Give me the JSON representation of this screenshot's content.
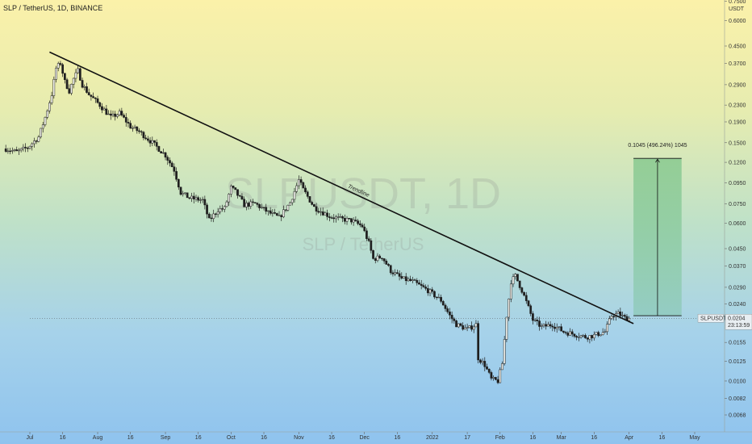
{
  "header": {
    "title": "SLP / TetherUS, 1D, BINANCE"
  },
  "watermark": {
    "symbol": "SLPUSDT, 1D",
    "name": "SLP / TetherUS"
  },
  "annotations": {
    "trendline_label": "Trendline",
    "measure_label": "0.1045 (496.24%) 1045"
  },
  "price_label": {
    "symbol": "SLPUSDT",
    "price": "0.0204",
    "countdown": "23:13:59"
  },
  "axis": {
    "currency": "USDT"
  },
  "colors": {
    "up": "#1f1f1f",
    "down": "#1f1f1f",
    "trendline": "#111111",
    "measure_fill": "#5fb878"
  },
  "chart_data": {
    "type": "candlestick",
    "y_scale": "log",
    "y_tick_labels": [
      "0.7500",
      "0.6000",
      "0.4500",
      "0.3700",
      "0.2900",
      "0.2300",
      "0.1900",
      "0.1500",
      "0.1200",
      "0.0950",
      "0.0750",
      "0.0600",
      "0.0450",
      "0.0370",
      "0.0290",
      "0.0240",
      "0.0155",
      "0.0125",
      "0.0100",
      "0.0082",
      "0.0068"
    ],
    "x_tick_labels": [
      "Jul",
      "16",
      "Aug",
      "16",
      "Sep",
      "16",
      "Oct",
      "16",
      "Nov",
      "16",
      "Dec",
      "16",
      "2022",
      "17",
      "Feb",
      "16",
      "Mar",
      "16",
      "Apr",
      "16",
      "May"
    ],
    "x_tick_dates": [
      "2021-07-01",
      "2021-07-16",
      "2021-08-01",
      "2021-08-16",
      "2021-09-01",
      "2021-09-16",
      "2021-10-01",
      "2021-10-16",
      "2021-11-01",
      "2021-11-16",
      "2021-12-01",
      "2021-12-16",
      "2022-01-01",
      "2022-01-17",
      "2022-02-01",
      "2022-02-16",
      "2022-03-01",
      "2022-03-16",
      "2022-04-01",
      "2022-04-16",
      "2022-05-01"
    ],
    "price_path": [
      [
        "2021-06-20",
        0.14
      ],
      [
        "2021-06-25",
        0.135
      ],
      [
        "2021-06-30",
        0.142
      ],
      [
        "2021-07-05",
        0.16
      ],
      [
        "2021-07-08",
        0.2
      ],
      [
        "2021-07-11",
        0.26
      ],
      [
        "2021-07-13",
        0.35
      ],
      [
        "2021-07-15",
        0.37
      ],
      [
        "2021-07-17",
        0.3
      ],
      [
        "2021-07-19",
        0.27
      ],
      [
        "2021-07-21",
        0.31
      ],
      [
        "2021-07-23",
        0.34
      ],
      [
        "2021-07-25",
        0.29
      ],
      [
        "2021-07-28",
        0.26
      ],
      [
        "2021-08-02",
        0.23
      ],
      [
        "2021-08-07",
        0.2
      ],
      [
        "2021-08-11",
        0.21
      ],
      [
        "2021-08-16",
        0.18
      ],
      [
        "2021-08-20",
        0.17
      ],
      [
        "2021-08-26",
        0.15
      ],
      [
        "2021-09-01",
        0.13
      ],
      [
        "2021-09-05",
        0.11
      ],
      [
        "2021-09-08",
        0.085
      ],
      [
        "2021-09-12",
        0.08
      ],
      [
        "2021-09-18",
        0.078
      ],
      [
        "2021-09-21",
        0.062
      ],
      [
        "2021-09-25",
        0.07
      ],
      [
        "2021-09-28",
        0.071
      ],
      [
        "2021-10-01",
        0.09
      ],
      [
        "2021-10-03",
        0.086
      ],
      [
        "2021-10-07",
        0.074
      ],
      [
        "2021-10-12",
        0.075
      ],
      [
        "2021-10-18",
        0.068
      ],
      [
        "2021-10-23",
        0.064
      ],
      [
        "2021-10-28",
        0.076
      ],
      [
        "2021-11-01",
        0.098
      ],
      [
        "2021-11-03",
        0.088
      ],
      [
        "2021-11-08",
        0.072
      ],
      [
        "2021-11-15",
        0.065
      ],
      [
        "2021-11-20",
        0.063
      ],
      [
        "2021-11-25",
        0.062
      ],
      [
        "2021-11-30",
        0.058
      ],
      [
        "2021-12-03",
        0.048
      ],
      [
        "2021-12-05",
        0.04
      ],
      [
        "2021-12-09",
        0.041
      ],
      [
        "2021-12-13",
        0.035
      ],
      [
        "2021-12-18",
        0.032
      ],
      [
        "2021-12-23",
        0.031
      ],
      [
        "2021-12-30",
        0.028
      ],
      [
        "2022-01-05",
        0.025
      ],
      [
        "2022-01-09",
        0.021
      ],
      [
        "2022-01-12",
        0.019
      ],
      [
        "2022-01-17",
        0.018
      ],
      [
        "2022-01-21",
        0.019
      ],
      [
        "2022-01-22",
        0.013
      ],
      [
        "2022-01-25",
        0.012
      ],
      [
        "2022-01-28",
        0.0102
      ],
      [
        "2022-01-31",
        0.01
      ],
      [
        "2022-02-02",
        0.0122
      ],
      [
        "2022-02-04",
        0.021
      ],
      [
        "2022-02-06",
        0.031
      ],
      [
        "2022-02-08",
        0.033
      ],
      [
        "2022-02-11",
        0.028
      ],
      [
        "2022-02-14",
        0.023
      ],
      [
        "2022-02-16",
        0.02
      ],
      [
        "2022-02-20",
        0.0185
      ],
      [
        "2022-02-25",
        0.019
      ],
      [
        "2022-03-02",
        0.0175
      ],
      [
        "2022-03-07",
        0.017
      ],
      [
        "2022-03-12",
        0.0165
      ],
      [
        "2022-03-16",
        0.0168
      ],
      [
        "2022-03-21",
        0.0175
      ],
      [
        "2022-03-24",
        0.021
      ],
      [
        "2022-03-27",
        0.0215
      ],
      [
        "2022-03-30",
        0.0205
      ],
      [
        "2022-04-01",
        0.0204
      ]
    ],
    "trendline": {
      "start": [
        "2021-07-10",
        0.42
      ],
      "end": [
        "2022-04-03",
        0.0192
      ]
    },
    "measure": {
      "start_date": "2022-04-03",
      "end_date": "2022-04-25",
      "low": 0.021,
      "high": 0.1255,
      "change": 0.1045,
      "change_percent": 496.24,
      "ticks": 1045
    },
    "current_price": 0.0204,
    "legend": "none"
  }
}
